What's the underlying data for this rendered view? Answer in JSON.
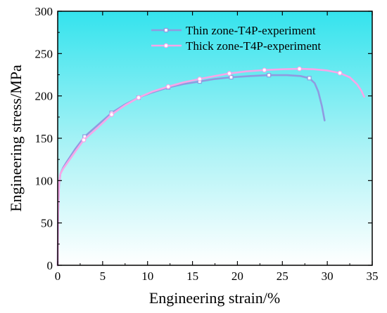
{
  "chart_data": {
    "type": "line",
    "xlabel": "Engineering strain/%",
    "ylabel": "Engineering stress/MPa",
    "xlim": [
      0,
      35
    ],
    "ylim": [
      0,
      300
    ],
    "x_ticks": [
      0,
      5,
      10,
      15,
      20,
      25,
      30,
      35
    ],
    "y_ticks": [
      0,
      50,
      100,
      150,
      200,
      250,
      300
    ],
    "grid": false,
    "legend_position": "top-center",
    "background": "cyan-to-white vertical gradient",
    "series": [
      {
        "name": "Thin zone-T4P-experiment",
        "color": "#8f9be0",
        "marker": "square",
        "x": [
          0,
          0.05,
          0.15,
          0.3,
          0.6,
          1.0,
          2.0,
          3.0,
          4.5,
          6.0,
          7.5,
          9.0,
          10.5,
          12.3,
          14.0,
          15.8,
          17.5,
          19.3,
          21.5,
          23.5,
          25.5,
          27.0,
          28.0,
          28.6,
          29.0,
          29.4,
          29.7
        ],
        "y": [
          0,
          60,
          95,
          108,
          115,
          122,
          138,
          152,
          166,
          180,
          190,
          198,
          204,
          210,
          214,
          217,
          220,
          222,
          223.5,
          224.5,
          224.5,
          223.5,
          221,
          215,
          205,
          188,
          171
        ],
        "marker_x": [
          3.0,
          6.0,
          9.0,
          12.3,
          15.8,
          19.3,
          23.5,
          28.0
        ]
      },
      {
        "name": "Thick zone-T4P-experiment",
        "color": "#f7a6e8",
        "marker": "circle",
        "x": [
          0,
          0.05,
          0.15,
          0.3,
          0.6,
          1.0,
          2.0,
          2.9,
          4.5,
          6.0,
          7.5,
          9.0,
          10.5,
          12.3,
          14.0,
          15.8,
          17.5,
          19.1,
          21.0,
          23.0,
          25.0,
          26.9,
          28.5,
          30.0,
          31.4,
          32.5,
          33.3,
          33.8,
          34.1
        ],
        "y": [
          0,
          62,
          96,
          108,
          114,
          120,
          135,
          148,
          163,
          178,
          189,
          198,
          205,
          211,
          216,
          220,
          223.5,
          226.5,
          229,
          230.5,
          231.5,
          232,
          231.5,
          230,
          227,
          222,
          214,
          206,
          199
        ],
        "marker_x": [
          2.9,
          6.0,
          9.0,
          12.3,
          15.8,
          19.1,
          23.0,
          26.9,
          31.4
        ]
      }
    ]
  }
}
